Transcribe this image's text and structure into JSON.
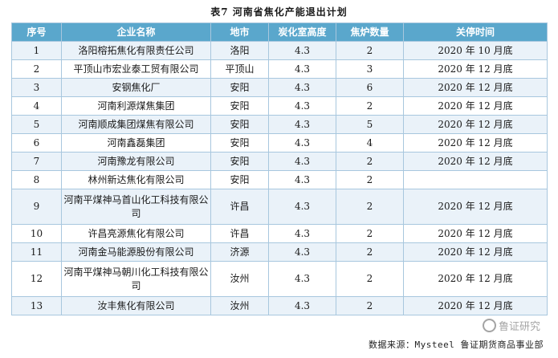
{
  "title": "表7 河南省焦化产能退出计划",
  "headers": [
    "序号",
    "企业名称",
    "地市",
    "炭化室高度",
    "焦炉数量",
    "关停时间"
  ],
  "rows": [
    {
      "no": "1",
      "company": "洛阳榕拓焦化有限责任公司",
      "city": "洛阳",
      "height": "4.3",
      "count": "2",
      "close": "2020 年 10 月底"
    },
    {
      "no": "2",
      "company": "平顶山市宏业泰工贸有限公司",
      "city": "平顶山",
      "height": "4.3",
      "count": "3",
      "close": "2020 年 12 月底"
    },
    {
      "no": "3",
      "company": "安钢焦化厂",
      "city": "安阳",
      "height": "4.3",
      "count": "6",
      "close": "2020 年 12 月底"
    },
    {
      "no": "4",
      "company": "河南利源煤焦集团",
      "city": "安阳",
      "height": "4.3",
      "count": "2",
      "close": "2020 年 12 月底"
    },
    {
      "no": "5",
      "company": "河南顺成集团煤焦有限公司",
      "city": "安阳",
      "height": "4.3",
      "count": "5",
      "close": "2020 年 12 月底"
    },
    {
      "no": "6",
      "company": "河南鑫磊集团",
      "city": "安阳",
      "height": "4.3",
      "count": "4",
      "close": "2020 年 12 月底"
    },
    {
      "no": "7",
      "company": "河南豫龙有限公司",
      "city": "安阳",
      "height": "4.3",
      "count": "2",
      "close": "2020 年 12 月底"
    },
    {
      "no": "8",
      "company": "林州新达焦化有限公司",
      "city": "安阳",
      "height": "4.3",
      "count": "2",
      "close": ""
    },
    {
      "no": "9",
      "company": "河南平煤神马首山化工科技有限公司",
      "city": "许昌",
      "height": "4.3",
      "count": "2",
      "close": "2020 年 12 月底"
    },
    {
      "no": "10",
      "company": "许昌亮源焦化有限公司",
      "city": "许昌",
      "height": "4.3",
      "count": "2",
      "close": "2020 年 12 月底"
    },
    {
      "no": "11",
      "company": "河南金马能源股份有限公司",
      "city": "济源",
      "height": "4.3",
      "count": "2",
      "close": "2020 年 12 月底"
    },
    {
      "no": "12",
      "company": "河南平煤神马朝川化工科技有限公司",
      "city": "汝州",
      "height": "4.3",
      "count": "2",
      "close": "2020 年 12 月底"
    },
    {
      "no": "13",
      "company": "汝丰焦化有限公司",
      "city": "汝州",
      "height": "4.3",
      "count": "2",
      "close": "2020 年 12 月底"
    }
  ],
  "source": "数据来源：Mysteel  鲁证期货商品事业部",
  "watermark": "鲁证研究",
  "colors": {
    "header_bg": "#5aa7cc",
    "stripe_bg": "#eaf2f9",
    "border": "#a8c7de"
  }
}
